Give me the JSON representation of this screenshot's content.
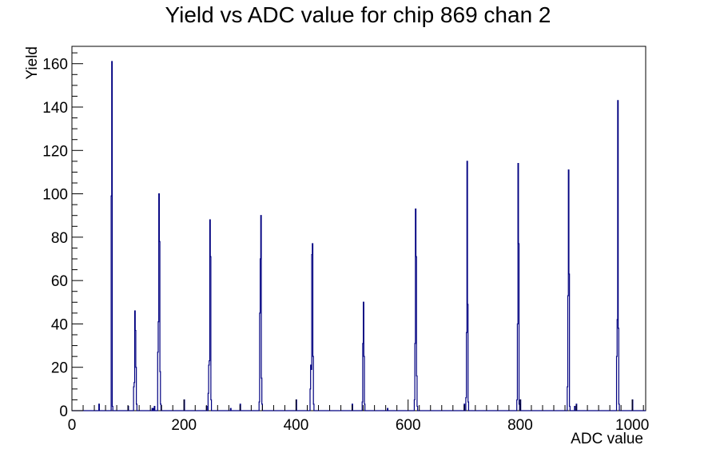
{
  "chart_data": {
    "type": "histogram",
    "title": "Yield vs ADC value for chip 869 chan 2",
    "xlabel": "ADC value",
    "ylabel": "Yield",
    "xlim": [
      0,
      1024
    ],
    "ylim": [
      0,
      168
    ],
    "grid": false,
    "legend": "none",
    "line_color": "#000080",
    "x_ticks": [
      0,
      200,
      400,
      600,
      800,
      1000
    ],
    "y_ticks": [
      0,
      20,
      40,
      60,
      80,
      100,
      120,
      140,
      160
    ],
    "peaks": [
      {
        "x": 70,
        "y": 99
      },
      {
        "x": 71,
        "y": 161
      },
      {
        "x": 72,
        "y": 2
      },
      {
        "x": 110,
        "y": 11
      },
      {
        "x": 111,
        "y": 13
      },
      {
        "x": 112,
        "y": 46
      },
      {
        "x": 113,
        "y": 37
      },
      {
        "x": 114,
        "y": 20
      },
      {
        "x": 115,
        "y": 3
      },
      {
        "x": 153,
        "y": 27
      },
      {
        "x": 154,
        "y": 41
      },
      {
        "x": 155,
        "y": 100
      },
      {
        "x": 156,
        "y": 78
      },
      {
        "x": 157,
        "y": 18
      },
      {
        "x": 158,
        "y": 3
      },
      {
        "x": 243,
        "y": 8
      },
      {
        "x": 244,
        "y": 21
      },
      {
        "x": 245,
        "y": 23
      },
      {
        "x": 246,
        "y": 88
      },
      {
        "x": 247,
        "y": 71
      },
      {
        "x": 248,
        "y": 5
      },
      {
        "x": 334,
        "y": 4
      },
      {
        "x": 335,
        "y": 45
      },
      {
        "x": 336,
        "y": 70
      },
      {
        "x": 337,
        "y": 90
      },
      {
        "x": 338,
        "y": 15
      },
      {
        "x": 339,
        "y": 3
      },
      {
        "x": 425,
        "y": 10
      },
      {
        "x": 426,
        "y": 21
      },
      {
        "x": 427,
        "y": 19
      },
      {
        "x": 428,
        "y": 72
      },
      {
        "x": 429,
        "y": 77
      },
      {
        "x": 430,
        "y": 25
      },
      {
        "x": 431,
        "y": 3
      },
      {
        "x": 518,
        "y": 4
      },
      {
        "x": 519,
        "y": 31
      },
      {
        "x": 520,
        "y": 50
      },
      {
        "x": 521,
        "y": 25
      },
      {
        "x": 522,
        "y": 3
      },
      {
        "x": 611,
        "y": 5
      },
      {
        "x": 612,
        "y": 31
      },
      {
        "x": 613,
        "y": 93
      },
      {
        "x": 614,
        "y": 71
      },
      {
        "x": 615,
        "y": 16
      },
      {
        "x": 616,
        "y": 2
      },
      {
        "x": 703,
        "y": 6
      },
      {
        "x": 704,
        "y": 36
      },
      {
        "x": 705,
        "y": 115
      },
      {
        "x": 706,
        "y": 49
      },
      {
        "x": 707,
        "y": 4
      },
      {
        "x": 794,
        "y": 5
      },
      {
        "x": 795,
        "y": 40
      },
      {
        "x": 796,
        "y": 114
      },
      {
        "x": 797,
        "y": 77
      },
      {
        "x": 798,
        "y": 3
      },
      {
        "x": 884,
        "y": 11
      },
      {
        "x": 885,
        "y": 53
      },
      {
        "x": 886,
        "y": 111
      },
      {
        "x": 887,
        "y": 63
      },
      {
        "x": 888,
        "y": 2
      },
      {
        "x": 972,
        "y": 25
      },
      {
        "x": 973,
        "y": 42
      },
      {
        "x": 974,
        "y": 143
      },
      {
        "x": 975,
        "y": 38
      },
      {
        "x": 976,
        "y": 3
      }
    ],
    "isolated": [
      {
        "x": 48,
        "y": 3
      },
      {
        "x": 100,
        "y": 2
      },
      {
        "x": 143,
        "y": 1
      },
      {
        "x": 145,
        "y": 1
      },
      {
        "x": 147,
        "y": 2
      },
      {
        "x": 200,
        "y": 5
      },
      {
        "x": 240,
        "y": 2
      },
      {
        "x": 283,
        "y": 1
      },
      {
        "x": 300,
        "y": 3
      },
      {
        "x": 400,
        "y": 5
      },
      {
        "x": 500,
        "y": 3
      },
      {
        "x": 563,
        "y": 1
      },
      {
        "x": 700,
        "y": 3
      },
      {
        "x": 800,
        "y": 5
      },
      {
        "x": 897,
        "y": 2
      },
      {
        "x": 900,
        "y": 3
      },
      {
        "x": 1000,
        "y": 5
      }
    ]
  }
}
